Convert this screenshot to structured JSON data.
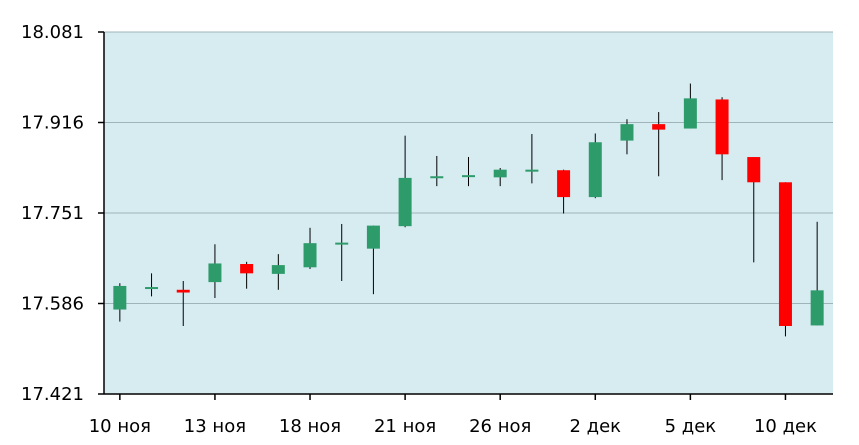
{
  "colors": {
    "plot_background": "#d6ecf1",
    "grid": "#9fb4b8",
    "axis": "#000000",
    "up": "#2e9b6b",
    "down": "#ff0000",
    "wick": "#000000"
  },
  "chart_data": {
    "type": "candlestick",
    "title": "",
    "xlabel": "",
    "ylabel": "",
    "ylim": [
      17.421,
      18.081
    ],
    "y_ticks": [
      "18.081",
      "17.916",
      "17.751",
      "17.586",
      "17.421"
    ],
    "x_ticks": [
      "10 ноя",
      "13 ноя",
      "18 ноя",
      "21 ноя",
      "26 ноя",
      "2 дек",
      "5 дек",
      "10 дек"
    ],
    "grid": true,
    "candles": [
      {
        "open": 17.575,
        "close": 17.618,
        "high": 17.623,
        "low": 17.553
      },
      {
        "open": 17.616,
        "close": 17.616,
        "high": 17.641,
        "low": 17.599
      },
      {
        "open": 17.611,
        "close": 17.606,
        "high": 17.627,
        "low": 17.545
      },
      {
        "open": 17.625,
        "close": 17.659,
        "high": 17.694,
        "low": 17.596
      },
      {
        "open": 17.658,
        "close": 17.641,
        "high": 17.662,
        "low": 17.613
      },
      {
        "open": 17.64,
        "close": 17.656,
        "high": 17.676,
        "low": 17.611
      },
      {
        "open": 17.652,
        "close": 17.696,
        "high": 17.724,
        "low": 17.649
      },
      {
        "open": 17.697,
        "close": 17.697,
        "high": 17.731,
        "low": 17.627
      },
      {
        "open": 17.686,
        "close": 17.728,
        "high": 17.728,
        "low": 17.603
      },
      {
        "open": 17.727,
        "close": 17.815,
        "high": 17.892,
        "low": 17.725
      },
      {
        "open": 17.818,
        "close": 17.818,
        "high": 17.855,
        "low": 17.8
      },
      {
        "open": 17.82,
        "close": 17.82,
        "high": 17.853,
        "low": 17.8
      },
      {
        "open": 17.816,
        "close": 17.83,
        "high": 17.833,
        "low": 17.8
      },
      {
        "open": 17.83,
        "close": 17.83,
        "high": 17.895,
        "low": 17.805
      },
      {
        "open": 17.829,
        "close": 17.78,
        "high": 17.83,
        "low": 17.75
      },
      {
        "open": 17.78,
        "close": 17.88,
        "high": 17.896,
        "low": 17.778
      },
      {
        "open": 17.883,
        "close": 17.913,
        "high": 17.922,
        "low": 17.858
      },
      {
        "open": 17.913,
        "close": 17.903,
        "high": 17.935,
        "low": 17.818
      },
      {
        "open": 17.905,
        "close": 17.96,
        "high": 17.987,
        "low": 17.905
      },
      {
        "open": 17.958,
        "close": 17.858,
        "high": 17.962,
        "low": 17.811
      },
      {
        "open": 17.853,
        "close": 17.807,
        "high": 17.853,
        "low": 17.661
      },
      {
        "open": 17.807,
        "close": 17.545,
        "high": 17.807,
        "low": 17.526
      },
      {
        "open": 17.546,
        "close": 17.61,
        "high": 17.735,
        "low": 17.546
      }
    ]
  }
}
